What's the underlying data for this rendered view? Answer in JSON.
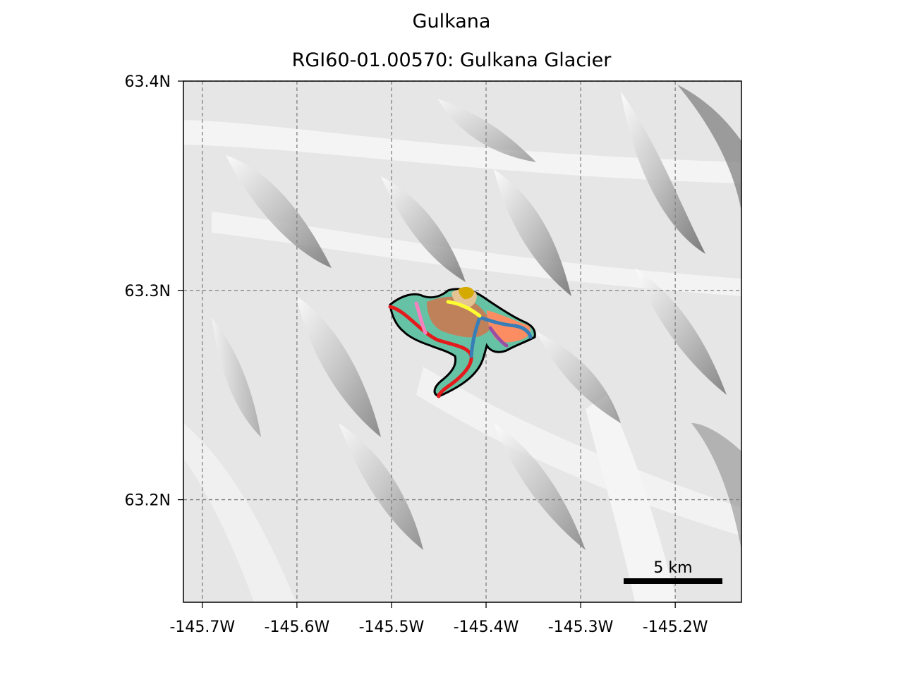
{
  "figure": {
    "suptitle": "Gulkana",
    "title": "RGI60-01.00570: Gulkana Glacier"
  },
  "axes": {
    "x_ticks": [
      "-145.7W",
      "-145.6W",
      "-145.5W",
      "-145.4W",
      "-145.3W",
      "-145.2W"
    ],
    "y_ticks": [
      "63.4N",
      "63.3N",
      "63.2N"
    ],
    "x_tick_values": [
      -145.7,
      -145.6,
      -145.5,
      -145.4,
      -145.3,
      -145.2
    ],
    "y_tick_values": [
      63.4,
      63.3,
      63.2
    ],
    "xlim": [
      -145.72,
      -145.13
    ],
    "ylim": [
      63.151,
      63.4
    ],
    "grid": true,
    "grid_style": "dashed",
    "grid_color": "#808080"
  },
  "scale_bar": {
    "label": "5 km"
  },
  "glacier": {
    "outline_color": "#000000",
    "flowline_colors": [
      "#e41a1c",
      "#f781bf",
      "#377eb8",
      "#984ea3",
      "#ffff33",
      "#66c2a5",
      "#fc8d62",
      "#e5c494"
    ]
  }
}
